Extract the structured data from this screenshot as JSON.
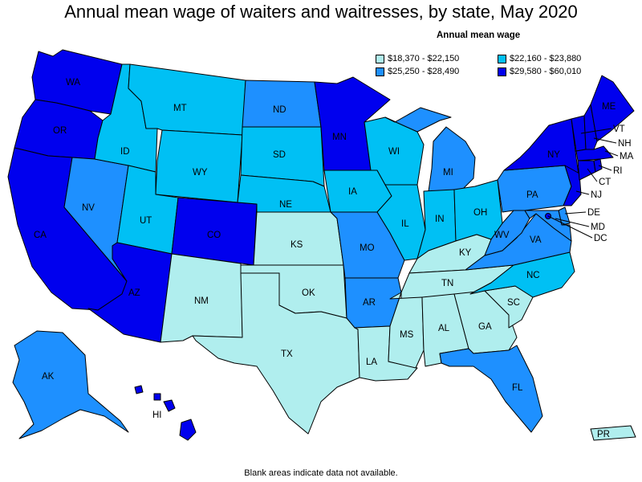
{
  "title": "Annual mean wage of waiters and waitresses, by state, May 2020",
  "legend": {
    "title": "Annual mean wage",
    "items": [
      {
        "id": "c1",
        "label": "$18,370 - $22,150",
        "color": "#b0eeee"
      },
      {
        "id": "c2",
        "label": "$22,160 - $23,880",
        "color": "#00c0f4"
      },
      {
        "id": "c3",
        "label": "$25,250 - $28,490",
        "color": "#1e90ff"
      },
      {
        "id": "c4",
        "label": "$29,580 - $60,010",
        "color": "#0000ee"
      }
    ]
  },
  "footnote": "Blank areas indicate data not available.",
  "states": {
    "WA": "c4",
    "OR": "c4",
    "CA": "c4",
    "NV": "c3",
    "ID": "c2",
    "MT": "c2",
    "WY": "c2",
    "UT": "c2",
    "AZ": "c4",
    "CO": "c4",
    "NM": "c1",
    "ND": "c3",
    "SD": "c2",
    "NE": "c2",
    "KS": "c1",
    "OK": "c1",
    "TX": "c1",
    "MN": "c4",
    "IA": "c2",
    "MO": "c3",
    "AR": "c3",
    "LA": "c1",
    "WI": "c2",
    "IL": "c2",
    "MI": "c3",
    "IN": "c2",
    "OH": "c2",
    "KY": "c1",
    "TN": "c1",
    "MS": "c1",
    "AL": "c1",
    "GA": "c1",
    "FL": "c3",
    "SC": "c1",
    "NC": "c2",
    "VA": "c3",
    "WV": "c3",
    "PA": "c3",
    "NY": "c4",
    "VT": "c4",
    "NH": "c4",
    "ME": "c4",
    "MA": "c4",
    "RI": "c4",
    "CT": "c4",
    "NJ": "c4",
    "DE": "c3",
    "MD": "c3",
    "DC": "c4",
    "AK": "c3",
    "HI": "c4",
    "PR": "c1"
  },
  "state_labels": {
    "WA": "WA",
    "OR": "OR",
    "CA": "CA",
    "NV": "NV",
    "ID": "ID",
    "MT": "MT",
    "WY": "WY",
    "UT": "UT",
    "AZ": "AZ",
    "CO": "CO",
    "NM": "NM",
    "ND": "ND",
    "SD": "SD",
    "NE": "NE",
    "KS": "KS",
    "OK": "OK",
    "TX": "TX",
    "MN": "MN",
    "IA": "IA",
    "MO": "MO",
    "AR": "AR",
    "LA": "LA",
    "WI": "WI",
    "IL": "IL",
    "MI": "MI",
    "IN": "IN",
    "OH": "OH",
    "KY": "KY",
    "TN": "TN",
    "MS": "MS",
    "AL": "AL",
    "GA": "GA",
    "FL": "FL",
    "SC": "SC",
    "NC": "NC",
    "VA": "VA",
    "WV": "WV",
    "PA": "PA",
    "NY": "NY",
    "VT": "VT",
    "NH": "NH",
    "ME": "ME",
    "MA": "MA",
    "RI": "RI",
    "CT": "CT",
    "NJ": "NJ",
    "DE": "DE",
    "MD": "MD",
    "DC": "DC",
    "AK": "AK",
    "HI": "HI",
    "PR": "PR"
  }
}
